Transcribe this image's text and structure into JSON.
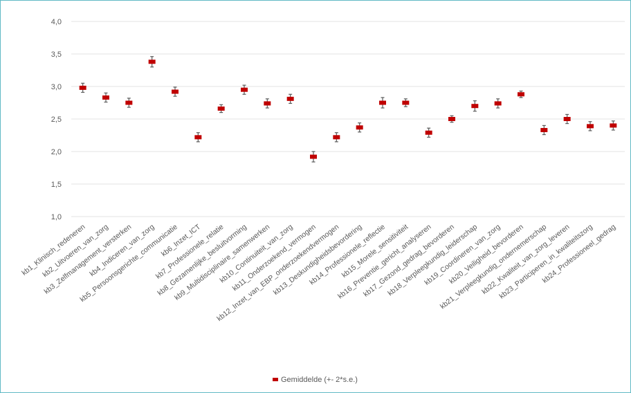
{
  "chart_data": {
    "type": "scatter",
    "ylim": [
      1.0,
      4.0
    ],
    "yticks": [
      "1,0",
      "1,5",
      "2,0",
      "2,5",
      "3,0",
      "3,5",
      "4,0"
    ],
    "ytick_values": [
      1.0,
      1.5,
      2.0,
      2.5,
      3.0,
      3.5,
      4.0
    ],
    "grid": "horizontal",
    "legend_position": "bottom",
    "marker_color": "#c00000",
    "errorbar_color": "#595959",
    "categories": [
      "kb1_Klinisch_redeneren",
      "kb2_Uitvoeren_van_zorg",
      "kb3_Zelfmanagement_versterken",
      "kb4_Indiceren_van_zorg",
      "kb5_Persoonsgerichte_communicatie",
      "kb6_Inzet_ICT",
      "kb7_Professionele_relatie",
      "kb8_Gezamenlijke_besluitvorming",
      "kb9_Multidisciplinaire_samenwerken",
      "kb10_Continuiteit_van_zorg",
      "kb11_Onderzoekend_vermogen",
      "kb12_Inzet_van_EBP_onderzoekendvermogen",
      "kb13_Deskundigheidsbevordering",
      "kb14_Professionele_reflectie",
      "kb15_Morele_sensitiviteit",
      "kb16_Preventie_gericht_analyseren",
      "kb17_Gezond_gedrag_bevorderen",
      "kb18_Verpleegkundig_leiderschap",
      "kb19_Coordineren_van_zorg",
      "kb20_Veiligheid_bevorderen",
      "kb21_Verpleegkundig_ondernemerschap",
      "kb22_Kwaliteit_van_zorg_leveren",
      "kb23_Participeren_in_kwaliteitszorg",
      "kb24_Professioneel_gedrag"
    ],
    "series": [
      {
        "name": "Gemiddelde (+- 2*s.e.)",
        "values": [
          2.98,
          2.83,
          2.75,
          3.38,
          2.92,
          2.22,
          2.66,
          2.95,
          2.74,
          2.81,
          1.92,
          2.22,
          2.37,
          2.75,
          2.75,
          2.29,
          2.5,
          2.7,
          2.74,
          2.88,
          2.33,
          2.5,
          2.39,
          2.4
        ],
        "error": [
          0.07,
          0.07,
          0.07,
          0.08,
          0.07,
          0.07,
          0.06,
          0.07,
          0.07,
          0.07,
          0.08,
          0.07,
          0.07,
          0.08,
          0.06,
          0.07,
          0.05,
          0.08,
          0.07,
          0.05,
          0.07,
          0.07,
          0.07,
          0.07
        ]
      }
    ]
  }
}
